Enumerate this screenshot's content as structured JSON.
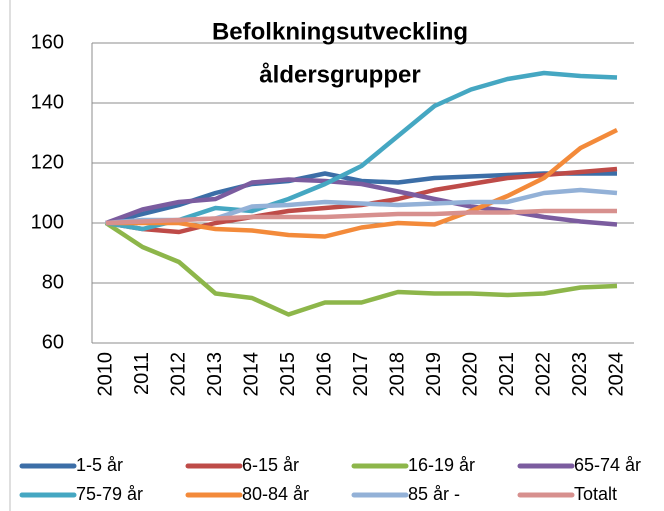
{
  "chart_data": {
    "type": "line",
    "title_lines": [
      "Befolkningsutveckling",
      "åldersgrupper"
    ],
    "categories": [
      "2010",
      "2011",
      "2012",
      "2013",
      "2014",
      "2015",
      "2016",
      "2017",
      "2018",
      "2019",
      "2020",
      "2021",
      "2022",
      "2023",
      "2024"
    ],
    "series": [
      {
        "name": "1-5 år",
        "color": "#3c6ea7",
        "values": [
          100,
          103,
          106,
          110,
          113,
          114,
          116.5,
          114,
          113.5,
          115,
          115.5,
          116,
          116.5,
          116.5,
          116.5
        ]
      },
      {
        "name": "6-15 år",
        "color": "#be4b48",
        "values": [
          100,
          98,
          97,
          100,
          102,
          104,
          105,
          106,
          108,
          111,
          113,
          115,
          116,
          117,
          118
        ]
      },
      {
        "name": "16-19 år",
        "color": "#8db64a",
        "values": [
          100,
          92,
          87,
          76.5,
          75,
          69.5,
          73.5,
          73.5,
          77,
          76.5,
          76.5,
          76,
          76.5,
          78.5,
          79
        ]
      },
      {
        "name": "65-74 år",
        "color": "#7b5c9f",
        "values": [
          100,
          104.5,
          107,
          108,
          113.5,
          114.5,
          114,
          113,
          110.5,
          108,
          105.5,
          104,
          102,
          100.5,
          99.5
        ]
      },
      {
        "name": "75-79 år",
        "color": "#45a7c2",
        "values": [
          100,
          98,
          101,
          105,
          104,
          108,
          113,
          119,
          129,
          139,
          144.5,
          148,
          150,
          149,
          148.5
        ]
      },
      {
        "name": "80-84 år",
        "color": "#f38a3a",
        "values": [
          100,
          100,
          100,
          98,
          97.5,
          96,
          95.5,
          98.5,
          100,
          99.5,
          104,
          109,
          115,
          125,
          131
        ]
      },
      {
        "name": "85 år -",
        "color": "#93b1d7",
        "values": [
          100,
          101,
          101,
          101.5,
          105.5,
          106,
          107,
          106.5,
          106,
          106.5,
          107,
          107,
          110,
          111,
          110
        ]
      },
      {
        "name": "Totalt",
        "color": "#d7908e",
        "values": [
          100,
          100.5,
          101,
          101.5,
          102,
          102,
          102,
          102.5,
          103,
          103,
          103.5,
          103.5,
          104,
          104,
          104
        ]
      }
    ],
    "ylim": [
      60,
      160
    ],
    "yticks": [
      60,
      80,
      100,
      120,
      140,
      160
    ],
    "grid": true
  }
}
